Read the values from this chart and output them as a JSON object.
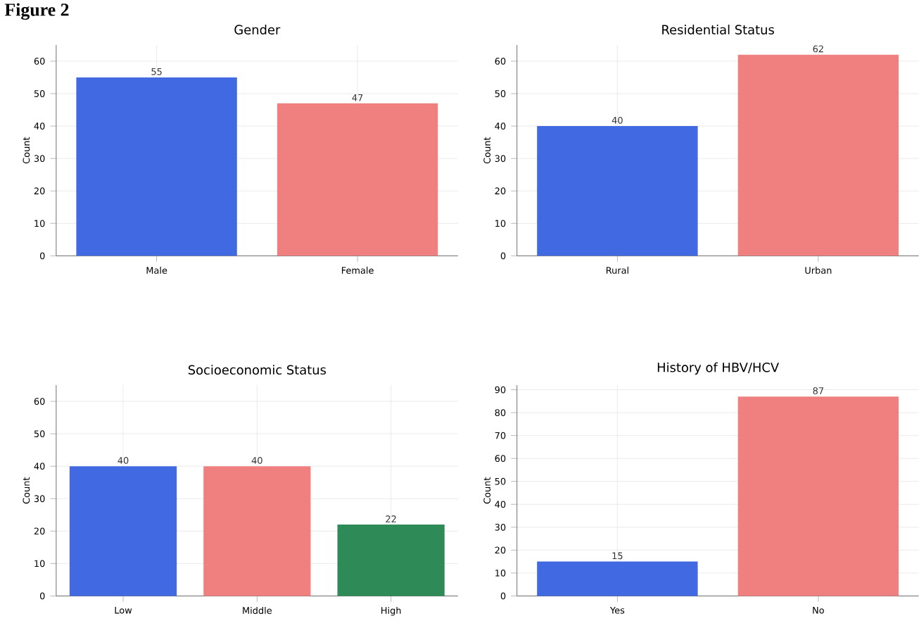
{
  "chart_data": [
    {
      "type": "bar",
      "title": "Gender",
      "ylabel": "Count",
      "categories": [
        "Male",
        "Female"
      ],
      "values": [
        55,
        47
      ],
      "colors": [
        "#4169e1",
        "#f08080"
      ],
      "value_labels": [
        "55",
        "47"
      ],
      "ylim": [
        0,
        65
      ],
      "yticks": [
        0,
        10,
        20,
        30,
        40,
        50,
        60
      ],
      "grid": true,
      "annotations": [
        "Figure 2"
      ]
    },
    {
      "type": "bar",
      "title": "Residential Status",
      "ylabel": "Count",
      "categories": [
        "Rural",
        "Urban"
      ],
      "values": [
        40,
        62
      ],
      "colors": [
        "#4169e1",
        "#f08080"
      ],
      "value_labels": [
        "40",
        "62"
      ],
      "ylim": [
        0,
        65
      ],
      "yticks": [
        0,
        10,
        20,
        30,
        40,
        50,
        60
      ],
      "grid": true
    },
    {
      "type": "bar",
      "title": "Socioeconomic Status",
      "ylabel": "Count",
      "categories": [
        "Low",
        "Middle",
        "High"
      ],
      "values": [
        40,
        40,
        22
      ],
      "colors": [
        "#4169e1",
        "#f08080",
        "#2e8b57"
      ],
      "value_labels": [
        "40",
        "40",
        "22"
      ],
      "ylim": [
        0,
        65
      ],
      "yticks": [
        0,
        10,
        20,
        30,
        40,
        50,
        60
      ],
      "grid": true
    },
    {
      "type": "bar",
      "title": "History of HBV/HCV",
      "ylabel": "Count",
      "categories": [
        "Yes",
        "No"
      ],
      "values": [
        15,
        87
      ],
      "colors": [
        "#4169e1",
        "#f08080"
      ],
      "value_labels": [
        "15",
        "87"
      ],
      "ylim": [
        0,
        92
      ],
      "yticks": [
        0,
        10,
        20,
        30,
        40,
        50,
        60,
        70,
        80,
        90
      ],
      "grid": true
    }
  ]
}
